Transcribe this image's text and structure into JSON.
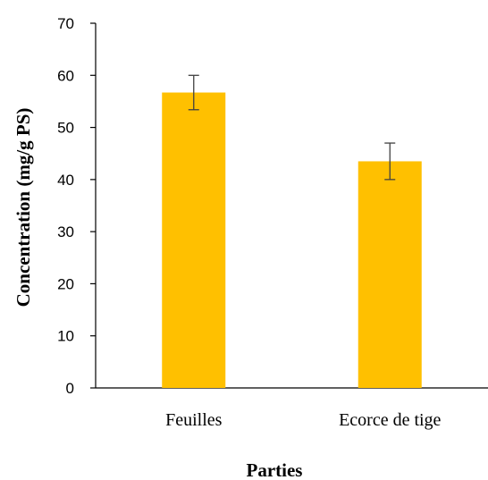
{
  "chart_data": {
    "type": "bar",
    "categories": [
      "Feuilles",
      "Ecorce de tige"
    ],
    "values": [
      56.7,
      43.5
    ],
    "error_bars": [
      [
        53.4,
        60.0
      ],
      [
        40.0,
        47.0
      ]
    ],
    "xlabel": "Parties",
    "ylabel": "Concentration (mg/g PS)",
    "ylim": [
      0,
      70
    ],
    "yticks": [
      "0",
      "10",
      "20",
      "30",
      "40",
      "50",
      "60",
      "70"
    ],
    "grid": false,
    "bar_color": "#FFC000",
    "axis_color": "#000000",
    "errorbar_color": "#404040"
  }
}
